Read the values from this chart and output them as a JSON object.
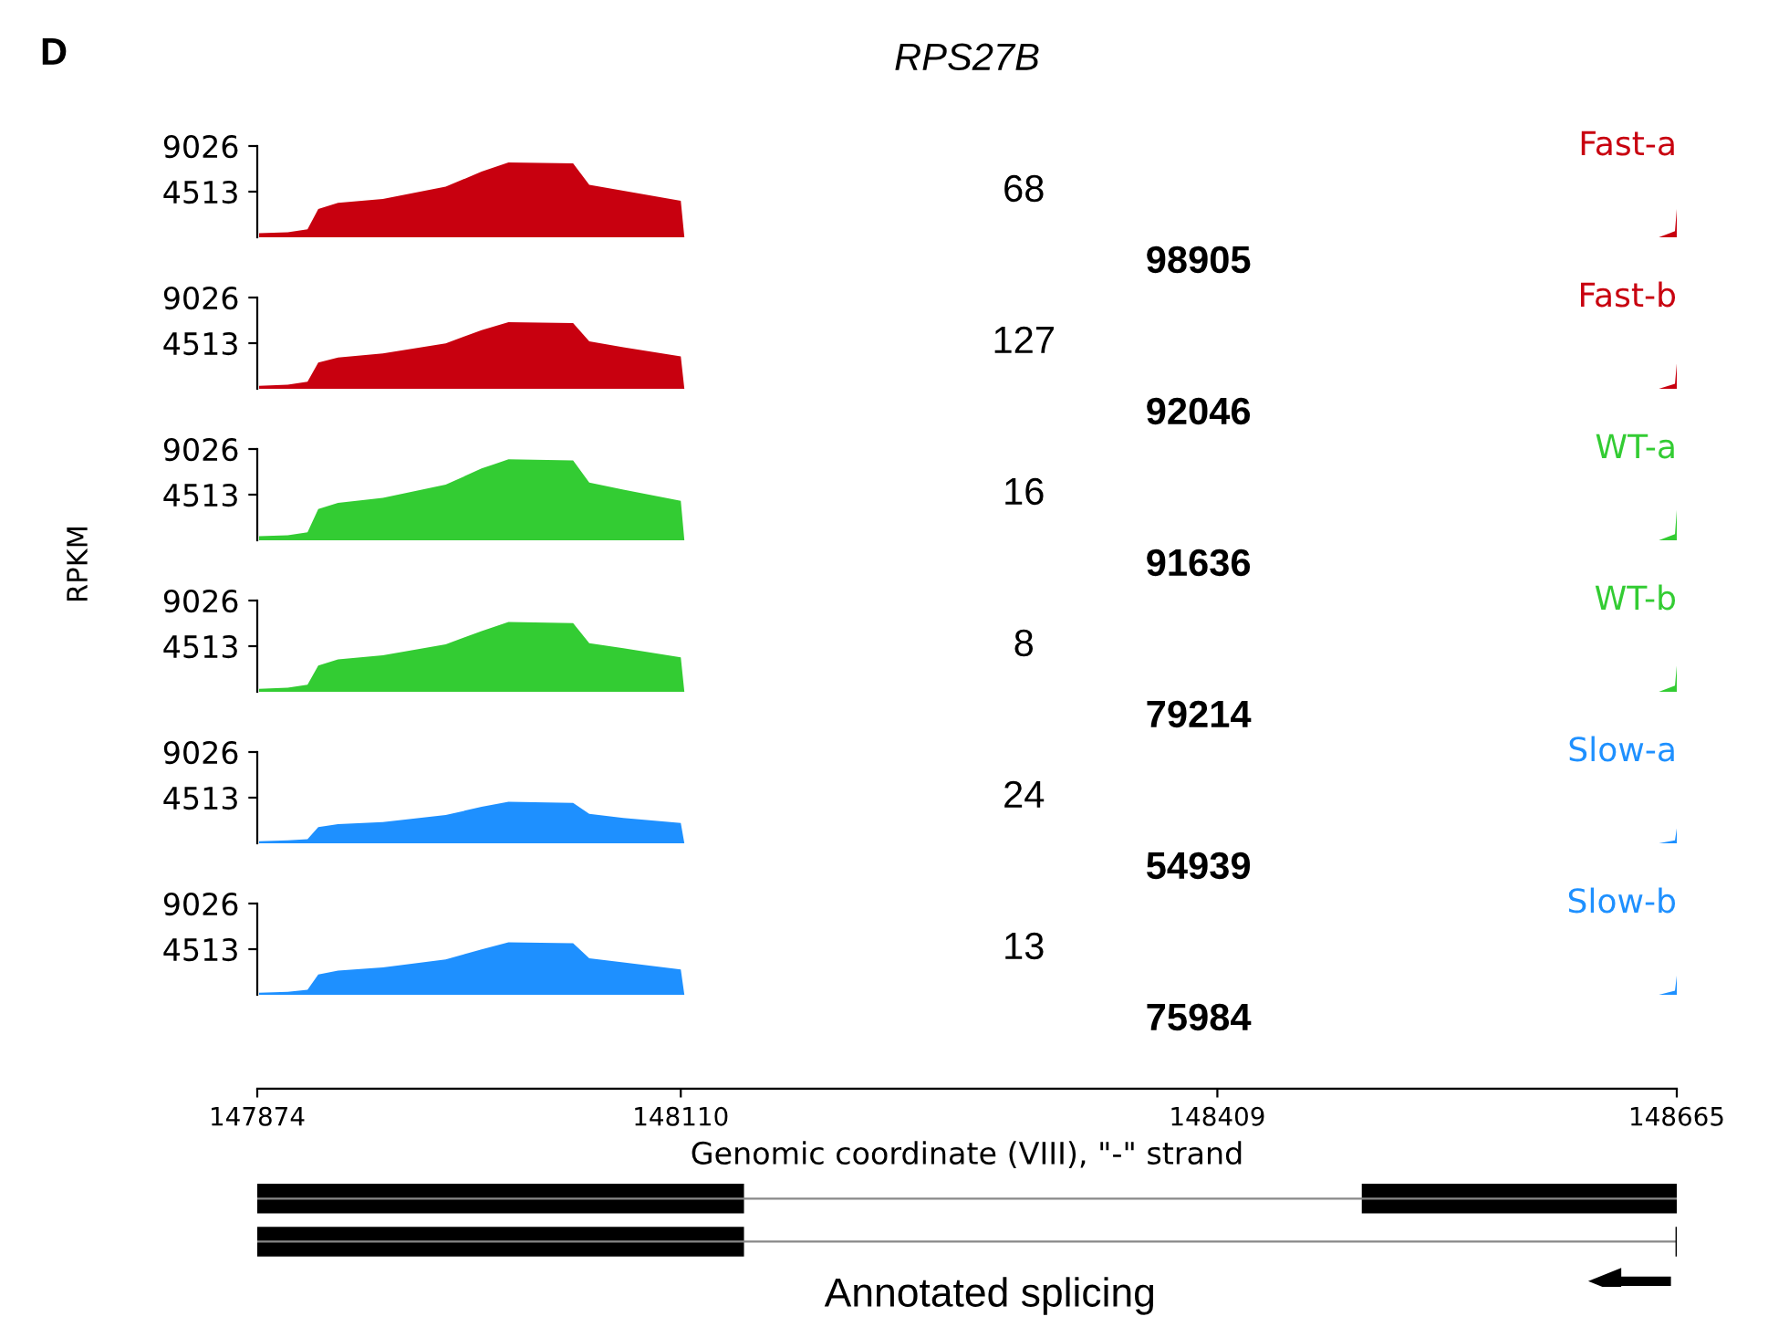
{
  "chart_data": [
    {
      "type": "area",
      "title": "RPS27B",
      "x": [
        147875,
        147891,
        147902,
        147908,
        147919,
        147944,
        147979,
        147999,
        148014,
        148050,
        148059,
        148078,
        148110,
        148112,
        148655,
        148664,
        148665
      ],
      "series": [
        {
          "name": "Fast-a",
          "color": "#c8000f",
          "values": [
            400,
            500,
            800,
            2800,
            3400,
            3800,
            5000,
            6500,
            7400,
            7300,
            5200,
            4600,
            3600,
            0,
            0,
            600,
            2800
          ]
        }
      ],
      "ylim": [
        0,
        9026
      ],
      "yticks": [
        4513,
        9026
      ],
      "xlim": [
        147874,
        148665
      ],
      "tick_labels": "y",
      "grid": false,
      "legend": false,
      "annotations": [
        "68",
        "98905",
        "D",
        "Annotated splicing"
      ]
    },
    {
      "type": "area",
      "x": [
        147875,
        147891,
        147902,
        147908,
        147919,
        147944,
        147979,
        147999,
        148014,
        148050,
        148059,
        148078,
        148110,
        148112,
        148655,
        148664,
        148665
      ],
      "series": [
        {
          "name": "Fast-b",
          "color": "#c8000f",
          "values": [
            300,
            400,
            700,
            2600,
            3100,
            3500,
            4500,
            5800,
            6600,
            6500,
            4700,
            4100,
            3200,
            0,
            0,
            500,
            2500
          ]
        }
      ],
      "ylim": [
        0,
        9026
      ],
      "yticks": [
        4513,
        9026
      ],
      "xlim": [
        147874,
        148665
      ],
      "tick_labels": "y",
      "grid": false,
      "legend": false,
      "annotations": [
        "127",
        "92046"
      ]
    },
    {
      "type": "area",
      "x": [
        147875,
        147891,
        147902,
        147908,
        147919,
        147944,
        147979,
        147999,
        148014,
        148050,
        148059,
        148078,
        148110,
        148112,
        148655,
        148664,
        148665
      ],
      "series": [
        {
          "name": "WT-a",
          "color": "#33cc33",
          "values": [
            400,
            500,
            800,
            3100,
            3700,
            4200,
            5500,
            7100,
            8000,
            7900,
            5700,
            5000,
            3900,
            0,
            0,
            600,
            3000
          ]
        }
      ],
      "ylim": [
        0,
        9026
      ],
      "yticks": [
        4513,
        9026
      ],
      "xlim": [
        147874,
        148665
      ],
      "tick_labels": "y",
      "grid": false,
      "legend": false,
      "annotations": [
        "16",
        "91636"
      ]
    },
    {
      "type": "area",
      "ylabel": "RPKM",
      "x": [
        147875,
        147891,
        147902,
        147908,
        147919,
        147944,
        147979,
        147999,
        148014,
        148050,
        148059,
        148078,
        148110,
        148112,
        148655,
        148664,
        148665
      ],
      "series": [
        {
          "name": "WT-b",
          "color": "#33cc33",
          "values": [
            300,
            400,
            700,
            2600,
            3200,
            3600,
            4700,
            6000,
            6900,
            6800,
            4800,
            4300,
            3400,
            0,
            0,
            600,
            2600
          ]
        }
      ],
      "ylim": [
        0,
        9026
      ],
      "yticks": [
        4513,
        9026
      ],
      "xlim": [
        147874,
        148665
      ],
      "tick_labels": "y",
      "grid": false,
      "legend": false,
      "annotations": [
        "8",
        "79214"
      ]
    },
    {
      "type": "area",
      "x": [
        147875,
        147891,
        147902,
        147908,
        147919,
        147944,
        147979,
        147999,
        148014,
        148050,
        148059,
        148078,
        148110,
        148112,
        148655,
        148664,
        148665
      ],
      "series": [
        {
          "name": "Slow-a",
          "color": "#1e90ff",
          "values": [
            200,
            300,
            400,
            1600,
            1900,
            2100,
            2800,
            3600,
            4100,
            4000,
            2900,
            2500,
            2000,
            0,
            0,
            300,
            1500
          ]
        }
      ],
      "ylim": [
        0,
        9026
      ],
      "yticks": [
        4513,
        9026
      ],
      "xlim": [
        147874,
        148665
      ],
      "tick_labels": "y",
      "grid": false,
      "legend": false,
      "annotations": [
        "24",
        "54939"
      ]
    },
    {
      "type": "area",
      "xlabel": "Genomic coordinate (VIII), \"-\" strand",
      "x": [
        147875,
        147891,
        147902,
        147908,
        147919,
        147944,
        147979,
        147999,
        148014,
        148050,
        148059,
        148078,
        148110,
        148112,
        148655,
        148664,
        148665
      ],
      "series": [
        {
          "name": "Slow-b",
          "color": "#1e90ff",
          "values": [
            200,
            300,
            500,
            2000,
            2400,
            2700,
            3500,
            4500,
            5200,
            5100,
            3600,
            3200,
            2500,
            0,
            0,
            400,
            1900
          ]
        }
      ],
      "ylim": [
        0,
        9026
      ],
      "yticks": [
        4513,
        9026
      ],
      "xlim": [
        147874,
        148665
      ],
      "xticks": [
        147874,
        148110,
        148409,
        148665
      ],
      "grid": false,
      "legend": false,
      "annotations": [
        "13",
        "75984"
      ]
    }
  ]
}
